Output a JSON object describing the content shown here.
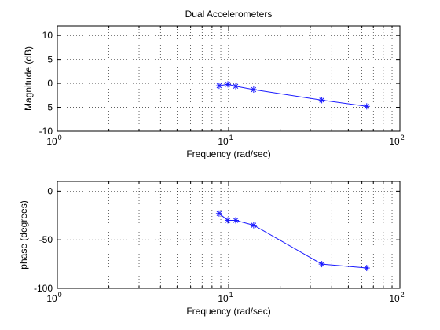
{
  "chart_data": [
    {
      "type": "line",
      "title": "Dual Accelerometers",
      "xlabel": "Frequency (rad/sec)",
      "ylabel": "Magnitude (dB)",
      "xscale": "log",
      "xlim": [
        1,
        100
      ],
      "ylim": [
        -10,
        12
      ],
      "xtick_labels": [
        {
          "value": 1,
          "base": "10",
          "exp": "0"
        },
        {
          "value": 10,
          "base": "10",
          "exp": "1"
        },
        {
          "value": 100,
          "base": "10",
          "exp": "2"
        }
      ],
      "yticks": [
        10,
        5,
        0,
        -5,
        -10
      ],
      "ytick_labels": [
        "10",
        "5",
        "0",
        "-5",
        "-10"
      ],
      "grid": true,
      "marker": "asterisk",
      "color": "#1a1aff",
      "series": [
        {
          "x": [
            8.8,
            9.9,
            11.0,
            14.0,
            35.0,
            64.0
          ],
          "y": [
            -0.5,
            -0.2,
            -0.6,
            -1.3,
            -3.5,
            -4.8
          ]
        }
      ]
    },
    {
      "type": "line",
      "title": "",
      "xlabel": "Frequency (rad/sec)",
      "ylabel": "phase (degrees)",
      "xscale": "log",
      "xlim": [
        1,
        100
      ],
      "ylim": [
        -100,
        10
      ],
      "xtick_labels": [
        {
          "value": 1,
          "base": "10",
          "exp": "0"
        },
        {
          "value": 10,
          "base": "10",
          "exp": "1"
        },
        {
          "value": 100,
          "base": "10",
          "exp": "2"
        }
      ],
      "yticks": [
        0,
        -50,
        -100
      ],
      "ytick_labels": [
        "0",
        "-50",
        "-100"
      ],
      "grid": true,
      "marker": "asterisk",
      "color": "#1a1aff",
      "series": [
        {
          "x": [
            8.8,
            9.9,
            11.0,
            14.0,
            35.0,
            64.0
          ],
          "y": [
            -23,
            -30,
            -30,
            -35,
            -75,
            -79
          ]
        }
      ]
    }
  ]
}
